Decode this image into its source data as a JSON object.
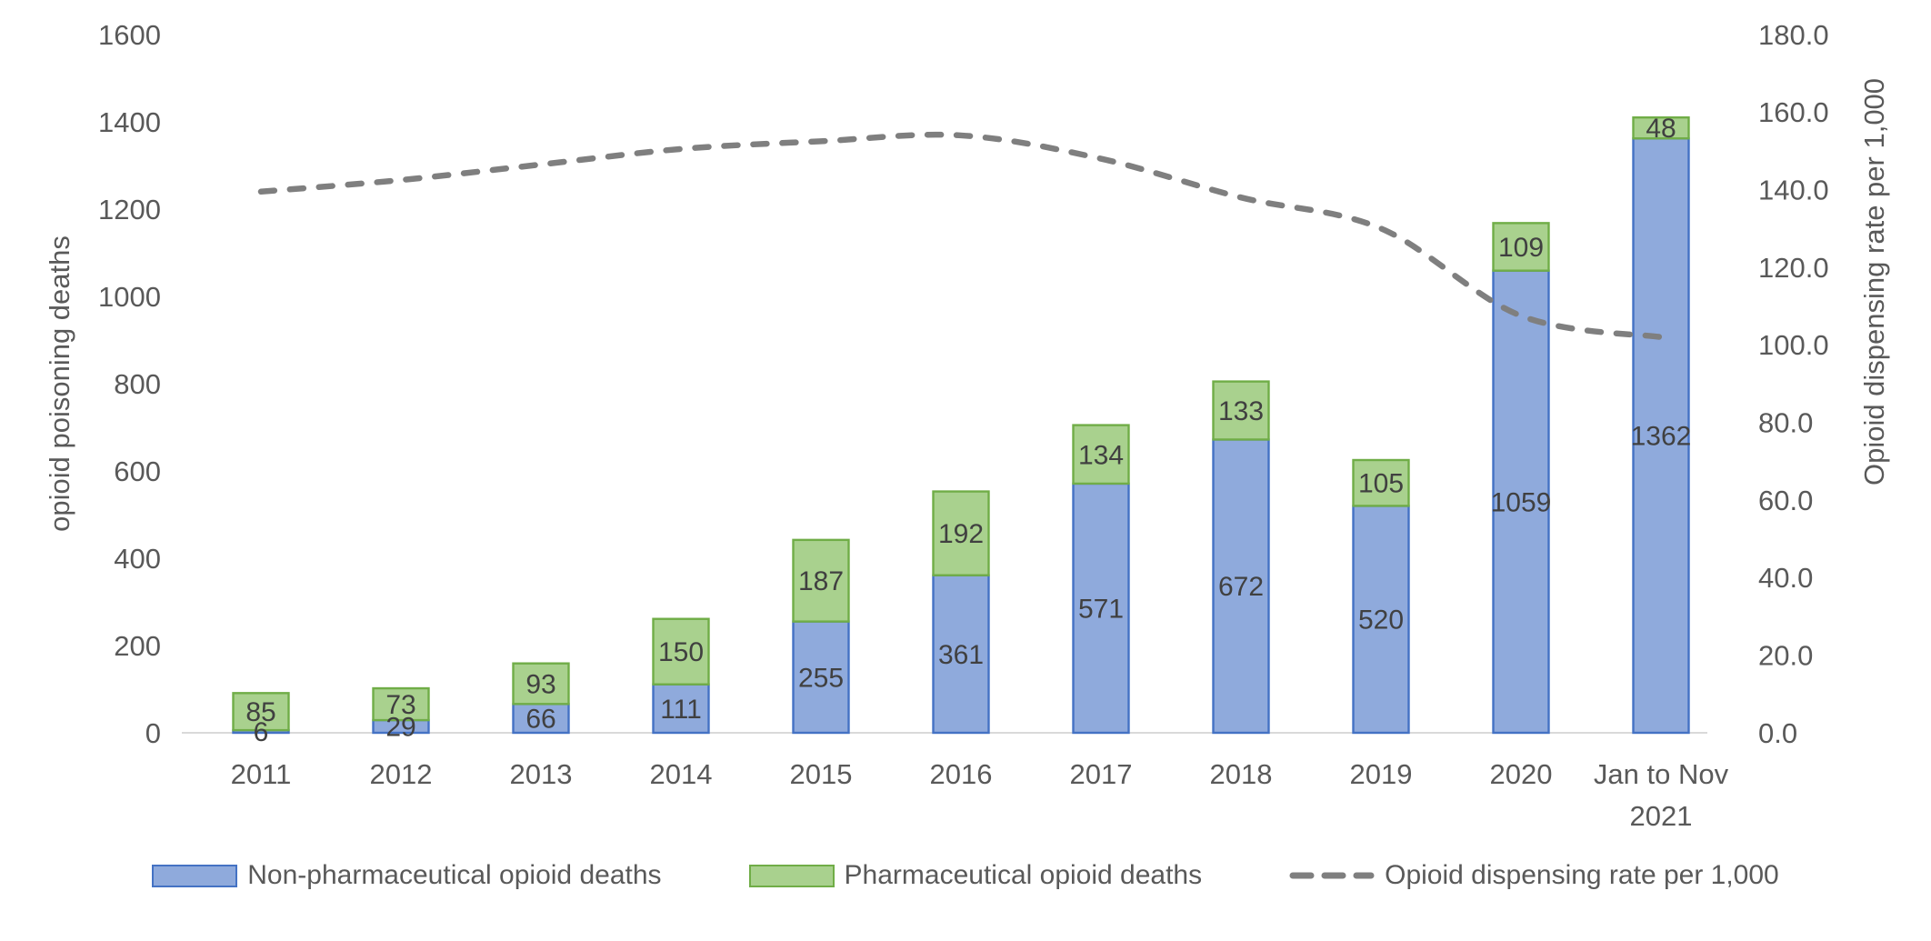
{
  "chart_data": {
    "type": "combo",
    "categories": [
      "2011",
      "2012",
      "2013",
      "2014",
      "2015",
      "2016",
      "2017",
      "2018",
      "2019",
      "2020",
      "Jan to Nov 2021"
    ],
    "series": [
      {
        "name": "Non-pharmaceutical opioid deaths",
        "type": "bar",
        "stacked": true,
        "axis": "left",
        "fill": "#8FAADC",
        "border": "#4472C4",
        "values": [
          6,
          29,
          66,
          111,
          255,
          361,
          571,
          672,
          520,
          1059,
          1362
        ]
      },
      {
        "name": "Pharmaceutical opioid deaths",
        "type": "bar",
        "stacked": true,
        "axis": "left",
        "fill": "#A9D18E",
        "border": "#70AD47",
        "values": [
          85,
          73,
          93,
          150,
          187,
          192,
          134,
          133,
          105,
          109,
          48
        ]
      },
      {
        "name": "Opioid dispensing rate per 1,000",
        "type": "line",
        "dashed": true,
        "smoothed": true,
        "axis": "right",
        "color": "#7F7F7F",
        "values": [
          139.5,
          142.5,
          146.5,
          150.5,
          152.5,
          154.0,
          148.0,
          138.0,
          130.0,
          107.5,
          102.0
        ]
      }
    ],
    "left_axis": {
      "title": "opioid poisoning deaths",
      "min": 0,
      "max": 1600,
      "step": 200,
      "decimals": 0
    },
    "right_axis": {
      "title": "Opioid dispensing rate per 1,000",
      "min": 0,
      "max": 180,
      "step": 20,
      "decimals": 1
    },
    "legend_position": "bottom",
    "grid": false,
    "colors": {
      "axis_text": "#595959",
      "data_label_text": "#404040",
      "axis_line": "#D9D9D9"
    }
  }
}
